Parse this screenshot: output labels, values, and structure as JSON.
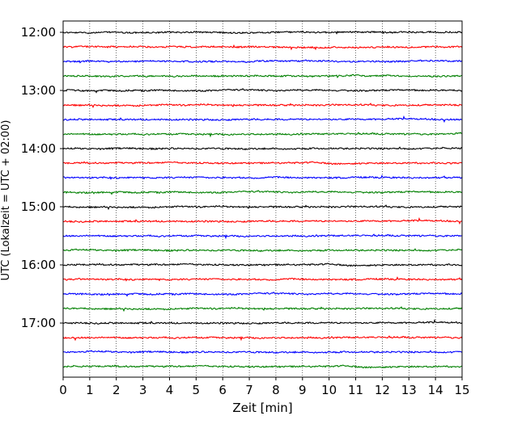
{
  "chart_data": {
    "type": "line",
    "title": "",
    "xlabel": "Zeit  [min]",
    "ylabel": "UTC (Lokalzeit = UTC + 02:00)",
    "xlim": [
      0,
      15
    ],
    "x_ticks": [
      0,
      1,
      2,
      3,
      4,
      5,
      6,
      7,
      8,
      9,
      10,
      11,
      12,
      13,
      14,
      15
    ],
    "x_tick_labels": [
      "0",
      "1",
      "2",
      "3",
      "4",
      "5",
      "6",
      "7",
      "8",
      "9",
      "10",
      "11",
      "12",
      "13",
      "14",
      "15"
    ],
    "y_tick_labels": [
      "12:00",
      "13:00",
      "14:00",
      "15:00",
      "16:00",
      "17:00"
    ],
    "trace_interval_min": 15,
    "trace_start": "12:00",
    "trace_count": 24,
    "trace_colors": [
      "#000000",
      "#ff0000",
      "#0000ff",
      "#008000"
    ],
    "grid": {
      "vertical_dotted": true
    },
    "legend": "none"
  }
}
